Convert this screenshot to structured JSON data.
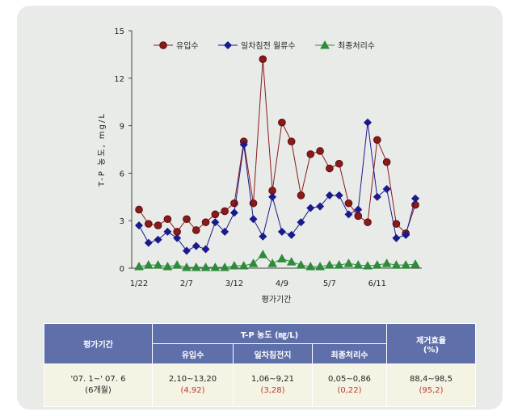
{
  "chart_data": {
    "type": "line",
    "xlabel": "평가기간",
    "ylabel": "T-P 농도, mg/L",
    "ylim": [
      0,
      15
    ],
    "yticks": [
      0,
      3,
      6,
      9,
      12,
      15
    ],
    "xtick_labels": [
      {
        "index": 0,
        "label": "1/22"
      },
      {
        "index": 5,
        "label": "2/7"
      },
      {
        "index": 10,
        "label": "3/12"
      },
      {
        "index": 15,
        "label": "4/9"
      },
      {
        "index": 20,
        "label": "5/7"
      },
      {
        "index": 25,
        "label": "6/11"
      }
    ],
    "series": [
      {
        "name": "유입수",
        "color": "#8b1a1a",
        "marker": "circle",
        "values": [
          3.7,
          2.8,
          2.7,
          3.1,
          2.3,
          3.1,
          2.4,
          2.9,
          3.4,
          3.6,
          4.1,
          8.0,
          4.1,
          13.2,
          4.9,
          9.2,
          8.0,
          4.6,
          7.2,
          7.4,
          6.3,
          6.6,
          4.1,
          3.3,
          2.9,
          8.1,
          6.7,
          2.8,
          2.2,
          4.0
        ]
      },
      {
        "name": "일차침전 월류수",
        "color": "#1a1a8c",
        "marker": "diamond",
        "values": [
          2.7,
          1.6,
          1.8,
          2.3,
          1.9,
          1.1,
          1.4,
          1.2,
          2.9,
          2.3,
          3.5,
          7.8,
          3.1,
          2.0,
          4.5,
          2.3,
          2.1,
          2.9,
          3.8,
          3.9,
          4.6,
          4.6,
          3.4,
          3.7,
          9.2,
          4.5,
          5.0,
          1.9,
          2.1,
          4.4
        ]
      },
      {
        "name": "최종처리수",
        "color": "#2e8b3a",
        "marker": "triangle",
        "values": [
          0.1,
          0.2,
          0.2,
          0.1,
          0.2,
          0.05,
          0.05,
          0.05,
          0.05,
          0.05,
          0.15,
          0.15,
          0.3,
          0.86,
          0.3,
          0.6,
          0.4,
          0.2,
          0.1,
          0.1,
          0.2,
          0.2,
          0.3,
          0.2,
          0.15,
          0.2,
          0.3,
          0.2,
          0.2,
          0.25
        ]
      }
    ]
  },
  "table": {
    "header": {
      "period": "평가기간",
      "tp_group": "T-P 농도 (㎎/L)",
      "removal": "제거효율\n(%)",
      "sub": [
        "유입수",
        "일차침전지",
        "최종처리수"
      ]
    },
    "row": {
      "period": "'07. 1~' 07. 6\n(6개월)",
      "influent_range": "2,10~13,20",
      "influent_avg": "(4,92)",
      "primary_range": "1,06~9,21",
      "primary_avg": "(3,28)",
      "final_range": "0,05~0,86",
      "final_avg": "(0,22)",
      "removal_range": "88,4~98,5",
      "removal_avg": "(95,2)"
    }
  }
}
